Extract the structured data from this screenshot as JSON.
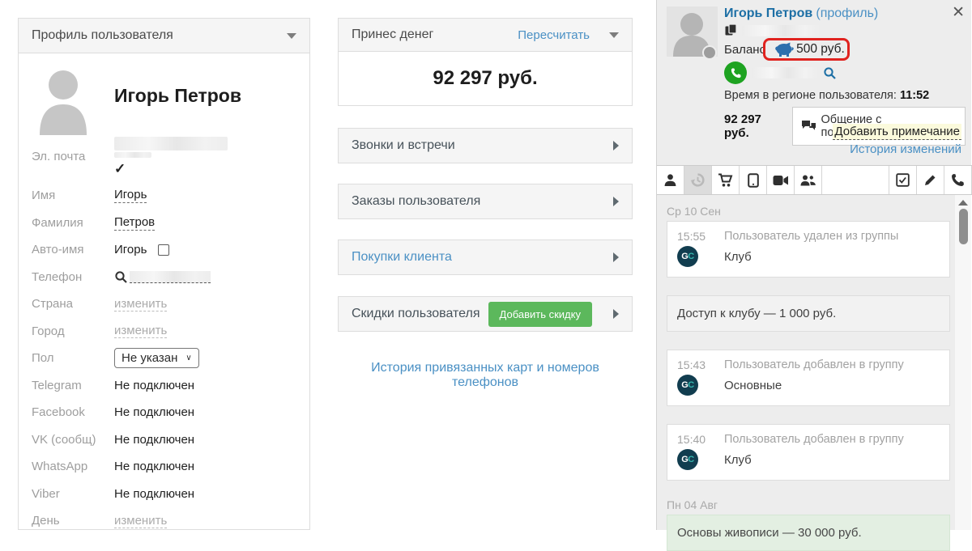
{
  "left_panel": {
    "header": "Профиль пользователя",
    "name": "Игорь Петров",
    "fields": [
      {
        "label": "Эл. почта",
        "type": "redacted_email",
        "value": ""
      },
      {
        "label": "Имя",
        "type": "text_dotted",
        "value": "Игорь"
      },
      {
        "label": "Фамилия",
        "type": "text_dotted",
        "value": "Петров"
      },
      {
        "label": "Авто-имя",
        "type": "text_checkbox",
        "value": "Игорь"
      },
      {
        "label": "Телефон",
        "type": "redacted_search",
        "value": ""
      },
      {
        "label": "Страна",
        "type": "edit_link",
        "value": "изменить"
      },
      {
        "label": "Город",
        "type": "edit_link",
        "value": "изменить"
      },
      {
        "label": "Пол",
        "type": "select",
        "value": "Не указан"
      },
      {
        "label": "Telegram",
        "type": "text",
        "value": "Не подключен"
      },
      {
        "label": "Facebook",
        "type": "text",
        "value": "Не подключен"
      },
      {
        "label": "VK (сообщ)",
        "type": "text",
        "value": "Не подключен"
      },
      {
        "label": "WhatsApp",
        "type": "text",
        "value": "Не подключен"
      },
      {
        "label": "Viber",
        "type": "text",
        "value": "Не подключен"
      },
      {
        "label": "День",
        "type": "edit_link",
        "value": "изменить"
      }
    ]
  },
  "middle": {
    "money_header": "Принес денег",
    "recalc_label": "Пересчитать",
    "total": "92 297 руб.",
    "sections": [
      {
        "label": "Звонки и встречи",
        "blue": false,
        "button": null
      },
      {
        "label": "Заказы пользователя",
        "blue": false,
        "button": null
      },
      {
        "label": "Покупки клиента",
        "blue": true,
        "button": null
      },
      {
        "label": "Скидки пользователя",
        "blue": false,
        "button": "Добавить скидку"
      }
    ],
    "cards_history_link": "История привязанных карт и номеров телефонов"
  },
  "sidebar": {
    "name": "Игорь Петров",
    "profile_suffix": "(профиль)",
    "balance_label": "Баланс",
    "balance_value": "500 руб.",
    "region_time_label": "Время в регионе пользователя:",
    "region_time_value": "11:52",
    "total": "92 297 руб.",
    "chat_button_label": "Общение с пользователем",
    "add_note_label": "Добавить примечание",
    "history_link_label": "История изменений",
    "close_label": "✕",
    "tabs": [
      {
        "icon": "person-icon",
        "active": false
      },
      {
        "icon": "history-icon",
        "active": true
      },
      {
        "icon": "cart-icon",
        "active": false
      },
      {
        "icon": "tablet-icon",
        "active": false
      },
      {
        "icon": "video-camera-icon",
        "active": false
      },
      {
        "icon": "people-icon",
        "active": false
      },
      {
        "icon": "spacer",
        "active": false
      },
      {
        "icon": "checkbox-icon",
        "active": false
      },
      {
        "icon": "pencil-icon",
        "active": false
      },
      {
        "icon": "phone-icon",
        "active": false
      }
    ],
    "timeline": [
      {
        "type": "date",
        "text": "Ср 10 Сен"
      },
      {
        "type": "event",
        "time": "15:55",
        "title": "Пользователь удален из группы",
        "subtitle": "Клуб",
        "badge": "GC"
      },
      {
        "type": "purchase",
        "text": "Доступ к клубу — 1 000 руб.",
        "style": "gray"
      },
      {
        "type": "event",
        "time": "15:43",
        "title": "Пользователь добавлен в группу",
        "subtitle": "Основные",
        "badge": "GC"
      },
      {
        "type": "event",
        "time": "15:40",
        "title": "Пользователь добавлен в группу",
        "subtitle": "Клуб",
        "badge": "GC"
      },
      {
        "type": "date",
        "text": "Пн 04 Авг"
      },
      {
        "type": "purchase",
        "text": "Основы живописи — 30 000 руб.",
        "style": "green"
      }
    ],
    "colors": {
      "annotation_red": "#e0231f",
      "link_blue": "#4a90c4",
      "button_green": "#5cb85c",
      "phone_green": "#1ea321",
      "piggy_blue": "#2d6fad"
    }
  }
}
